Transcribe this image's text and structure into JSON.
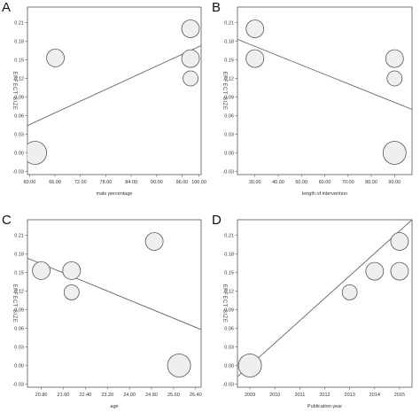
{
  "chart_data": [
    {
      "panel": "A",
      "type": "scatter",
      "xlabel": "male percentage",
      "ylabel": "EFFECT SIZE",
      "xlim": [
        59.5,
        100.5
      ],
      "ylim": [
        -0.035,
        0.235
      ],
      "xticks": [
        "60.00",
        "66.00",
        "72.00",
        "78.00",
        "84.00",
        "90.00",
        "96.00",
        "100.00"
      ],
      "yticks": [
        "-0.03",
        "0.00",
        "0.03",
        "0.06",
        "0.09",
        "0.12",
        "0.15",
        "0.18",
        "0.21"
      ],
      "points": [
        {
          "x": 61.3,
          "y": 0.0,
          "w": 1.3
        },
        {
          "x": 66.1,
          "y": 0.153,
          "w": 1.0
        },
        {
          "x": 98.0,
          "y": 0.2,
          "w": 1.0
        },
        {
          "x": 98.0,
          "y": 0.152,
          "w": 1.0
        },
        {
          "x": 98.0,
          "y": 0.12,
          "w": 0.85
        }
      ],
      "fit_line": [
        [
          59.5,
          0.044
        ],
        [
          100.5,
          0.173
        ]
      ]
    },
    {
      "panel": "B",
      "type": "scatter",
      "xlabel": "length of intervention",
      "ylabel": "EFFECT SIZE",
      "xlim": [
        22.5,
        97.5
      ],
      "ylim": [
        -0.035,
        0.235
      ],
      "xticks": [
        "30.00",
        "40.00",
        "50.00",
        "60.00",
        "70.00",
        "80.00",
        "90.00"
      ],
      "yticks": [
        "-0.03",
        "0.00",
        "0.03",
        "0.06",
        "0.09",
        "0.12",
        "0.15",
        "0.18",
        "0.21"
      ],
      "points": [
        {
          "x": 30.0,
          "y": 0.2,
          "w": 1.0
        },
        {
          "x": 30.0,
          "y": 0.152,
          "w": 1.0
        },
        {
          "x": 90.0,
          "y": 0.152,
          "w": 1.0
        },
        {
          "x": 90.0,
          "y": 0.12,
          "w": 0.85
        },
        {
          "x": 90.0,
          "y": 0.0,
          "w": 1.3
        }
      ],
      "fit_line": [
        [
          22.5,
          0.183
        ],
        [
          97.5,
          0.07
        ]
      ]
    },
    {
      "panel": "C",
      "type": "scatter",
      "xlabel": "age",
      "ylabel": "EFFECT SIZE",
      "xlim": [
        20.3,
        26.6
      ],
      "ylim": [
        -0.035,
        0.235
      ],
      "xticks": [
        "20.80",
        "21.60",
        "22.40",
        "23.20",
        "24.00",
        "24.80",
        "25.60",
        "26.40"
      ],
      "yticks": [
        "-0.03",
        "0.00",
        "0.03",
        "0.06",
        "0.09",
        "0.12",
        "0.15",
        "0.18",
        "0.21"
      ],
      "points": [
        {
          "x": 20.8,
          "y": 0.153,
          "w": 1.0
        },
        {
          "x": 21.9,
          "y": 0.153,
          "w": 1.0
        },
        {
          "x": 21.9,
          "y": 0.118,
          "w": 0.85
        },
        {
          "x": 24.9,
          "y": 0.2,
          "w": 1.0
        },
        {
          "x": 25.8,
          "y": 0.0,
          "w": 1.3
        }
      ],
      "fit_line": [
        [
          20.3,
          0.173
        ],
        [
          26.6,
          0.058
        ]
      ]
    },
    {
      "panel": "D",
      "type": "scatter",
      "xlabel": "Publication year",
      "ylabel": "EFFECT SIZE",
      "xlim": [
        2008.5,
        2015.5
      ],
      "ylim": [
        -0.035,
        0.235
      ],
      "xticks": [
        "2009",
        "2010",
        "2011",
        "2012",
        "2013",
        "2014",
        "2015"
      ],
      "yticks": [
        "-0.03",
        "0.00",
        "0.03",
        "0.06",
        "0.09",
        "0.12",
        "0.15",
        "0.18",
        "0.21"
      ],
      "points": [
        {
          "x": 2009.0,
          "y": 0.0,
          "w": 1.3
        },
        {
          "x": 2013.0,
          "y": 0.118,
          "w": 0.85
        },
        {
          "x": 2014.0,
          "y": 0.152,
          "w": 1.0
        },
        {
          "x": 2015.0,
          "y": 0.2,
          "w": 1.0
        },
        {
          "x": 2015.0,
          "y": 0.152,
          "w": 1.0
        }
      ],
      "fit_line": [
        [
          2008.5,
          -0.018
        ],
        [
          2015.5,
          0.235
        ]
      ]
    }
  ],
  "style": {
    "axis_color": "#555555",
    "line_color": "#666666",
    "bubble_fill": "#efefef",
    "bubble_stroke": "#555555",
    "text_color": "#333333"
  }
}
